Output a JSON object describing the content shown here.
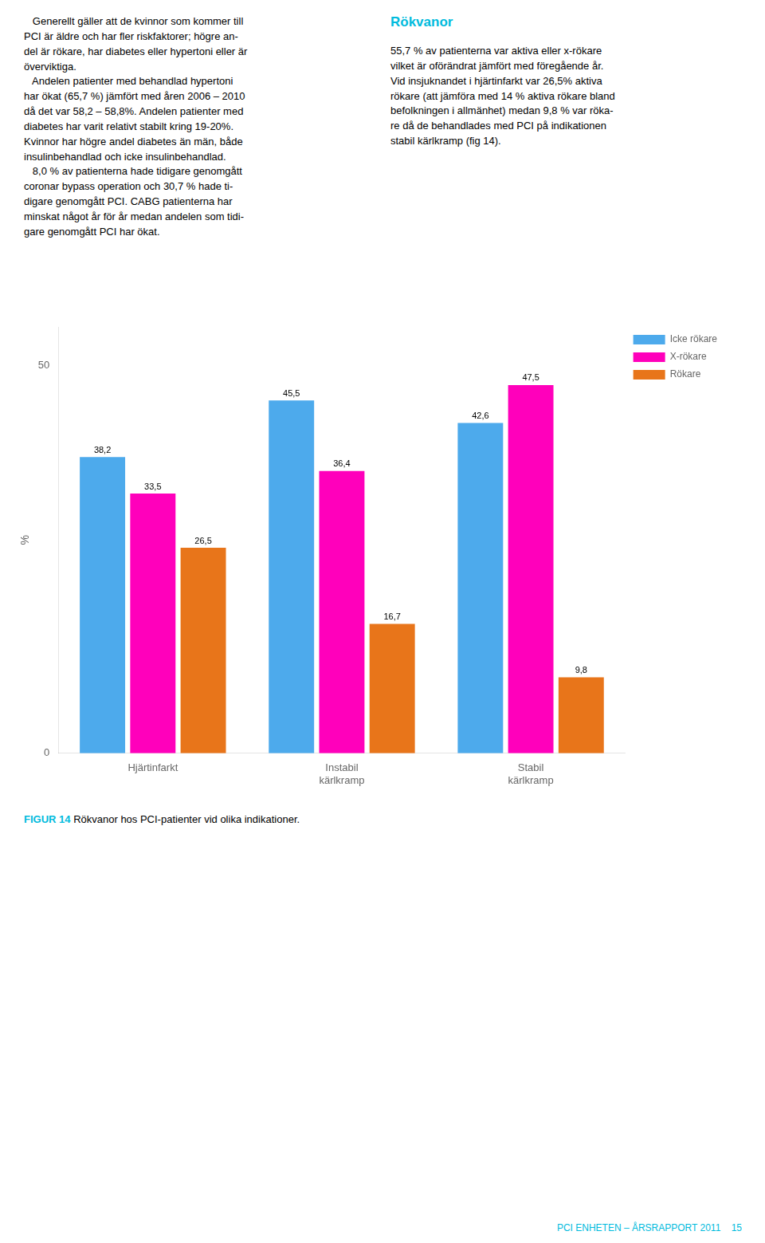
{
  "chart_data": {
    "type": "bar",
    "categories": [
      "Hjärtinfarkt",
      "Instabil\nkärlkramp",
      "Stabil\nkärlkramp"
    ],
    "series": [
      {
        "name": "Icke rökare",
        "color": "#4daaec",
        "values": [
          38.2,
          45.5,
          42.6
        ],
        "value_labels": [
          "38,2",
          "45,5",
          "42,6"
        ]
      },
      {
        "name": "X-rökare",
        "color": "#ff00bb",
        "values": [
          33.5,
          36.4,
          47.5
        ],
        "value_labels": [
          "33,5",
          "36,4",
          "47,5"
        ]
      },
      {
        "name": "Rökare",
        "color": "#e8751a",
        "values": [
          26.5,
          16.7,
          9.8
        ],
        "value_labels": [
          "26,5",
          "16,7",
          "9,8"
        ]
      }
    ],
    "ylabel": "%",
    "ylim": [
      0,
      55
    ],
    "yticks": [
      0,
      50
    ],
    "grid": false,
    "legend": "right",
    "data_labels": true
  },
  "page_text": {
    "left_column": "   Generellt gäller att de kvinnor som kommer till\nPCI är äldre och har fler riskfaktorer; högre an-\ndel är rökare, har diabetes eller hypertoni eller är\növerviktiga.\n   Andelen patienter med behandlad hypertoni\nhar ökat (65,7 %) jämfört med åren 2006 – 2010\ndå det var 58,2 – 58,8%. Andelen patienter med\ndiabetes har varit relativt stabilt kring 19-20%.\nKvinnor har högre andel diabetes än män, både\ninsulinbehandlad och icke insulinbehandlad.\n   8,0 % av patienterna hade tidigare genomgått\ncoronar bypass operation och 30,7 % hade ti-\ndigare genomgått PCI. CABG patienterna har\nminskat något år för år medan andelen som tidi-\ngare genomgått PCI har ökat.",
    "right_column_title": "Rökvanor",
    "right_column_body": "55,7 % av patienterna var aktiva eller x-rökare\nvilket är oförändrat jämfört med föregående år.\nVid insjuknandet i hjärtinfarkt var 26,5% aktiva\nrökare (att jämföra med 14 % aktiva rökare bland\nbefolkningen i allmänhet) medan 9,8 % var röka-\nre då de behandlades med PCI på indikationen\nstabil kärlkramp (fig 14).",
    "caption_bold": "FIGUR 14",
    "caption_text": " Rökvanor hos PCI-patienter vid olika indikationer.",
    "footer_label": "PCI ENHETEN – ÅRSRAPPORT 2011",
    "footer_page": "15",
    "accent_color": "#00bbdd",
    "text_color": "#000000"
  }
}
